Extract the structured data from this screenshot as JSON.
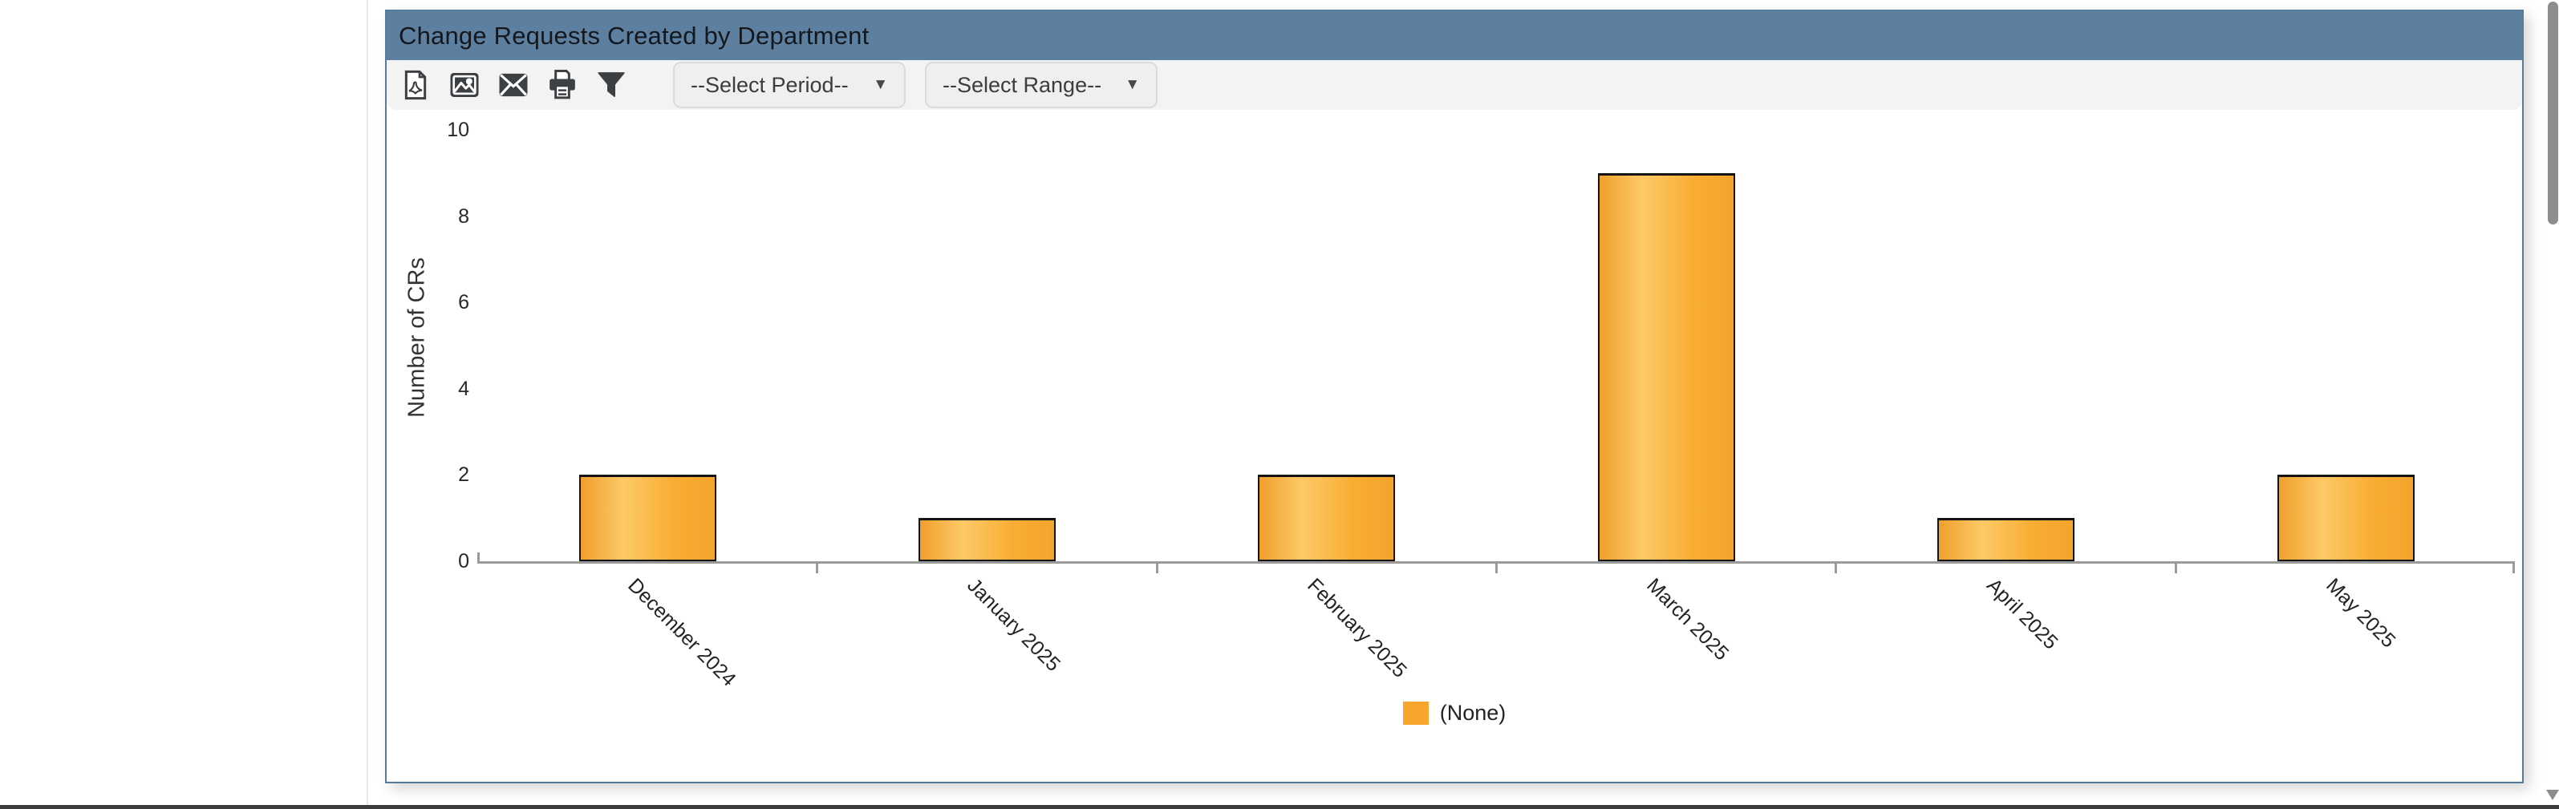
{
  "panel": {
    "title": "Change Requests Created by Department"
  },
  "toolbar": {
    "icons": [
      "export-pdf",
      "export-image",
      "email",
      "print",
      "filter"
    ],
    "period_dropdown": {
      "value": "--Select Period--"
    },
    "range_dropdown": {
      "value": "--Select Range--"
    },
    "caret": "▼"
  },
  "chart_data": {
    "type": "bar",
    "title": "Change Requests Created by Department",
    "categories": [
      "December 2024",
      "January 2025",
      "February 2025",
      "March 2025",
      "April 2025",
      "May 2025"
    ],
    "values": [
      2,
      1,
      2,
      9,
      1,
      2
    ],
    "xlabel": "",
    "ylabel": "Number of CRs",
    "yticks": [
      0,
      2,
      4,
      6,
      8,
      10
    ],
    "ylim": [
      0,
      10
    ],
    "grid": false,
    "legend": [
      {
        "label": "(None)",
        "color": "#f7a52d"
      }
    ],
    "legend_position": "bottom-center",
    "bar_fill": "#f8ab30",
    "bar_gradient": [
      "#ef9f2d",
      "#fdc967",
      "#f3a42c"
    ],
    "bar_border": "#141414",
    "axis_color": "#9b9b9b",
    "label_rotation_deg": 45
  }
}
